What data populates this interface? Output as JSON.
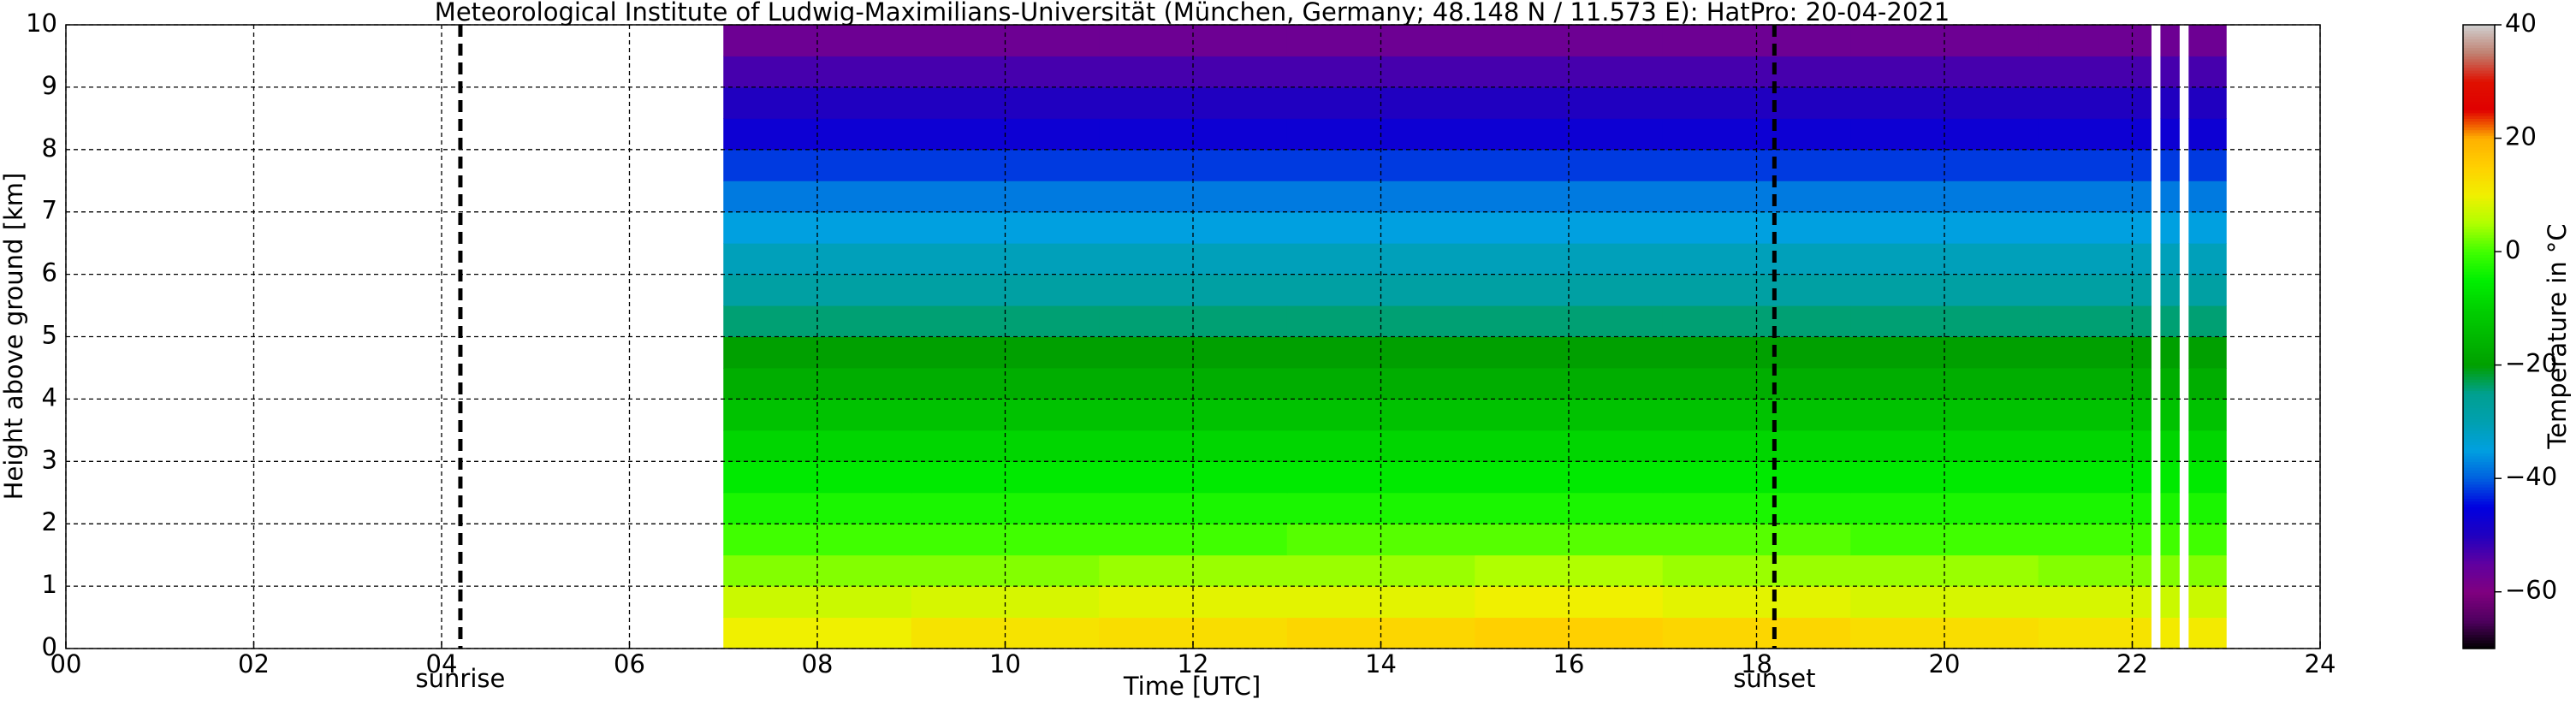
{
  "chart_data": {
    "type": "heatmap",
    "title": "Meteorological Institute of Ludwig-Maximilians-Universität (München, Germany; 48.148 N / 11.573 E):    HatPro: 20-04-2021",
    "xlabel": "Time [UTC]",
    "ylabel": "Height above ground [km]",
    "colorbar_label": "Temperature in °C",
    "xlim": [
      0,
      24
    ],
    "ylim": [
      0,
      10
    ],
    "zlim": [
      -70,
      40
    ],
    "xticks": [
      {
        "value": 0,
        "label": "00"
      },
      {
        "value": 2,
        "label": "02"
      },
      {
        "value": 4,
        "label": "04"
      },
      {
        "value": 6,
        "label": "06"
      },
      {
        "value": 8,
        "label": "08"
      },
      10,
      12,
      14,
      16,
      18,
      20,
      22,
      24
    ],
    "yticks": [
      0,
      1,
      2,
      3,
      4,
      5,
      6,
      7,
      8,
      9,
      10
    ],
    "zticks": [
      40,
      20,
      0,
      {
        "value": -20,
        "label": "−20"
      },
      {
        "value": -40,
        "label": "−40"
      },
      {
        "value": -60,
        "label": "−60"
      }
    ],
    "grid": true,
    "colormap": [
      "#000000",
      "#500060",
      "#800080",
      "#6000a0",
      "#2000c0",
      "#0000e0",
      "#0060e0",
      "#00a0e0",
      "#00a0b0",
      "#00a090",
      "#00a000",
      "#00b800",
      "#00d000",
      "#00f000",
      "#40ff00",
      "#b0ff00",
      "#f0f000",
      "#ffd000",
      "#ffb000",
      "#e00000",
      "#e01000",
      "#c08070",
      "#d0d0d0"
    ],
    "x_edges": [
      7,
      9,
      11,
      13,
      15,
      17,
      19,
      21,
      22.2,
      22.3,
      22.5,
      22.6,
      23
    ],
    "y_edges": [
      0,
      0.5,
      1,
      1.5,
      2,
      2.5,
      3,
      3.5,
      4,
      4.5,
      5,
      5.5,
      6,
      6.5,
      7,
      7.5,
      8,
      8.5,
      9,
      9.5,
      10
    ],
    "z": [
      [
        10,
        12,
        13,
        14,
        15,
        14,
        13,
        12,
        null,
        11,
        null,
        11
      ],
      [
        7,
        8,
        9,
        9,
        10,
        9,
        8,
        8,
        null,
        7,
        null,
        7
      ],
      [
        3,
        3,
        4,
        4,
        5,
        4,
        4,
        3,
        null,
        3,
        null,
        3
      ],
      [
        0,
        0,
        0,
        1,
        1,
        1,
        0,
        0,
        null,
        0,
        null,
        0
      ],
      [
        -3,
        -3,
        -3,
        -3,
        -3,
        -3,
        -3,
        -3,
        null,
        -3,
        null,
        -3
      ],
      [
        -6,
        -6,
        -6,
        -6,
        -6,
        -6,
        -6,
        -6,
        null,
        -6,
        null,
        -6
      ],
      [
        -9,
        -9,
        -9,
        -9,
        -9,
        -9,
        -9,
        -9,
        null,
        -9,
        null,
        -9
      ],
      [
        -13,
        -13,
        -13,
        -13,
        -13,
        -13,
        -13,
        -13,
        null,
        -13,
        null,
        -13
      ],
      [
        -17,
        -17,
        -17,
        -17,
        -17,
        -17,
        -17,
        -17,
        null,
        -17,
        null,
        -17
      ],
      [
        -20,
        -20,
        -20,
        -20,
        -20,
        -20,
        -20,
        -20,
        null,
        -20,
        null,
        -20
      ],
      [
        -24,
        -24,
        -24,
        -24,
        -24,
        -24,
        -24,
        -24,
        null,
        -24,
        null,
        -24
      ],
      [
        -28,
        -28,
        -28,
        -28,
        -28,
        -28,
        -28,
        -28,
        null,
        -28,
        null,
        -28
      ],
      [
        -31,
        -31,
        -31,
        -31,
        -31,
        -31,
        -31,
        -31,
        null,
        -31,
        null,
        -31
      ],
      [
        -35,
        -35,
        -35,
        -35,
        -35,
        -35,
        -35,
        -35,
        null,
        -35,
        null,
        -35
      ],
      [
        -38,
        -38,
        -38,
        -38,
        -38,
        -38,
        -38,
        -38,
        null,
        -38,
        null,
        -38
      ],
      [
        -42,
        -42,
        -42,
        -42,
        -42,
        -42,
        -42,
        -42,
        null,
        -42,
        null,
        -42
      ],
      [
        -47,
        -47,
        -47,
        -47,
        -47,
        -47,
        -47,
        -47,
        null,
        -47,
        null,
        -47
      ],
      [
        -50,
        -50,
        -50,
        -50,
        -50,
        -50,
        -50,
        -50,
        null,
        -50,
        null,
        -50
      ],
      [
        -53,
        -53,
        -53,
        -53,
        -53,
        -53,
        -53,
        -53,
        null,
        -53,
        null,
        -53
      ],
      [
        -57,
        -57,
        -57,
        -57,
        -57,
        -57,
        -57,
        -57,
        null,
        -57,
        null,
        -57
      ]
    ],
    "annotations": [
      {
        "label": "sunrise",
        "x": 4.2
      },
      {
        "label": "sunset",
        "x": 18.19
      }
    ]
  }
}
